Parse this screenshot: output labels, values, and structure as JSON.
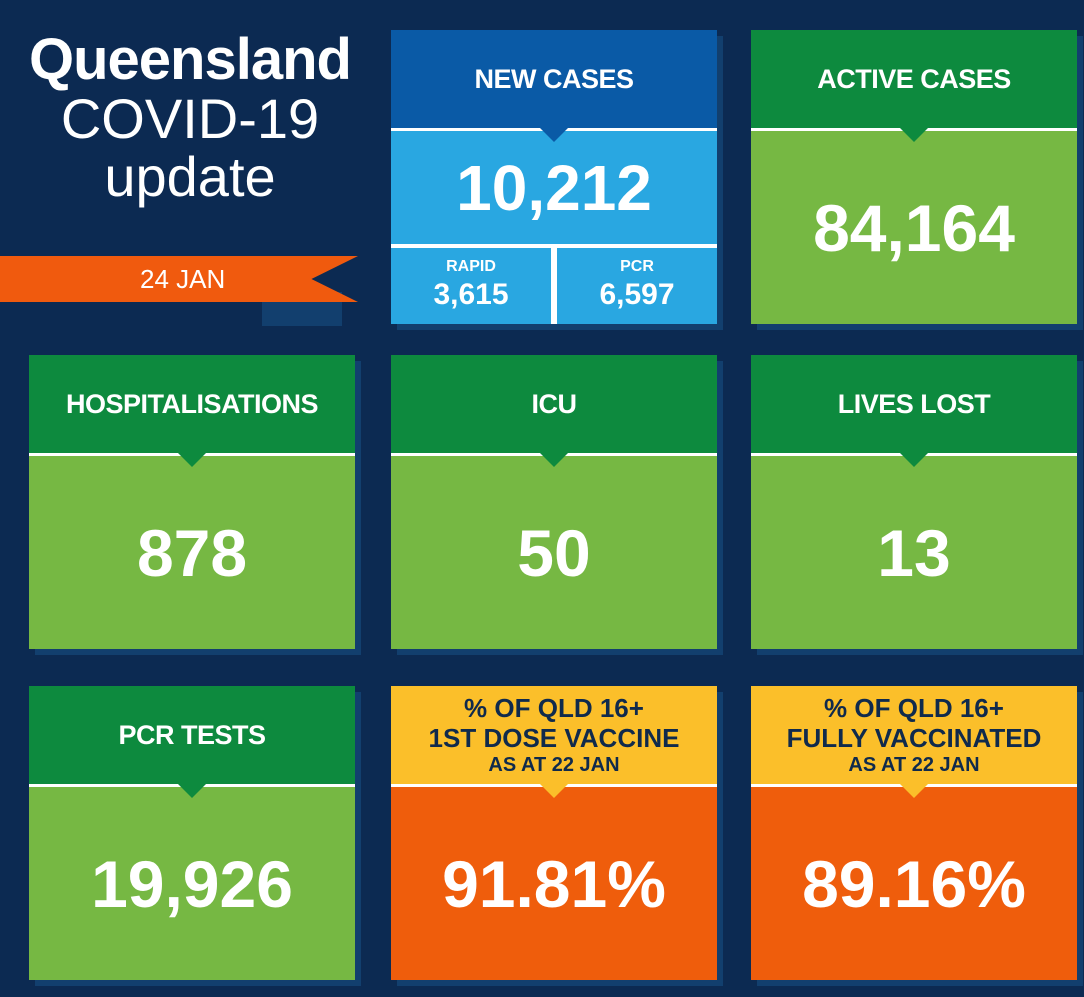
{
  "title": {
    "main": "Queensland",
    "line2": "COVID-19",
    "line3": "update",
    "date": "24 JAN"
  },
  "new_cases": {
    "label": "NEW CASES",
    "value": "10,212",
    "rapid_label": "RAPID",
    "rapid_value": "3,615",
    "pcr_label": "PCR",
    "pcr_value": "6,597"
  },
  "active_cases": {
    "label": "ACTIVE CASES",
    "value": "84,164"
  },
  "hospitalisations": {
    "label": "HOSPITALISATIONS",
    "value": "878"
  },
  "icu": {
    "label": "ICU",
    "value": "50"
  },
  "lives_lost": {
    "label": "LIVES LOST",
    "value": "13"
  },
  "pcr_tests": {
    "label": "PCR TESTS",
    "value": "19,926"
  },
  "first_dose": {
    "line1": "% OF QLD 16+",
    "line2": "1ST DOSE VACCINE",
    "line3": "AS AT 22 JAN",
    "value": "91.81%"
  },
  "fully_vaccinated": {
    "line1": "% OF QLD 16+",
    "line2": "FULLY VACCINATED",
    "line3": "AS AT 22 JAN",
    "value": "89.16%"
  },
  "colors": {
    "background": "#0c2a52",
    "green_dark": "#0d8a3e",
    "green_light": "#76b843",
    "blue_dark": "#0a5aa6",
    "blue_light": "#29a7e1",
    "yellow": "#fbbf2a",
    "orange": "#ef5d0c"
  }
}
